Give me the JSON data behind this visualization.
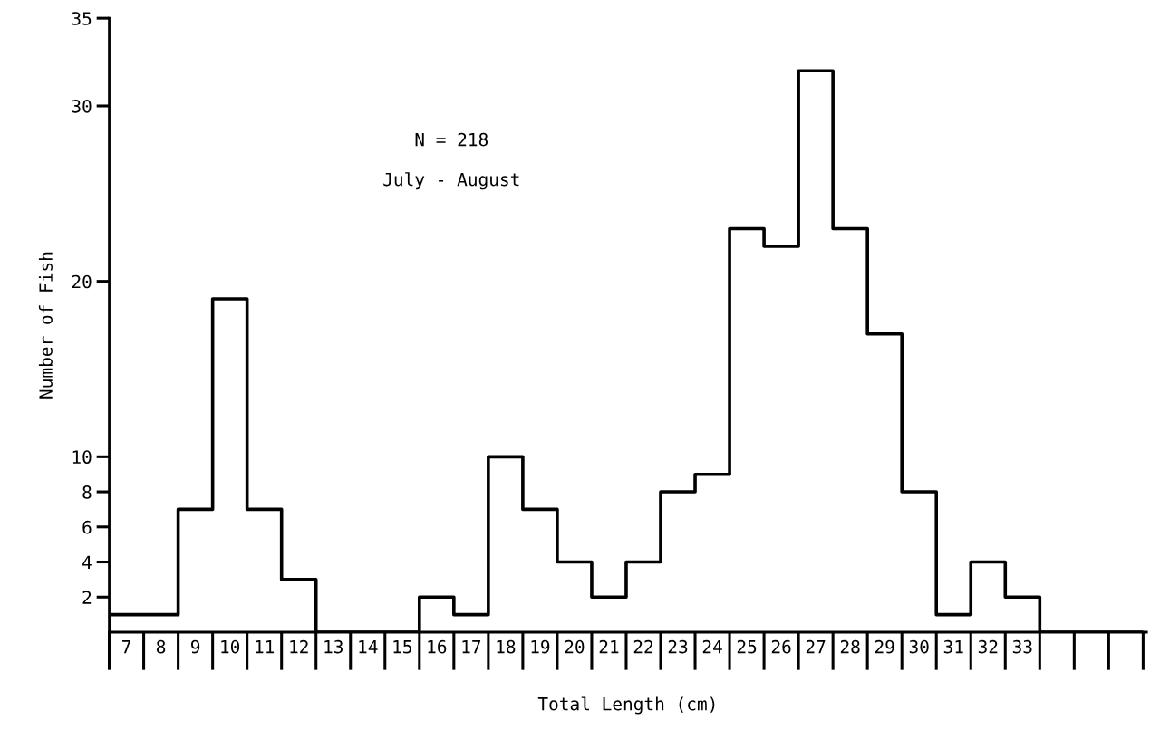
{
  "chart_data": {
    "type": "histogram",
    "xlabel": "Total Length (cm)",
    "ylabel": "Number of Fish",
    "annotations": [
      "N = 218",
      "July - August"
    ],
    "bins": [
      7,
      8,
      9,
      10,
      11,
      12,
      13,
      14,
      15,
      16,
      17,
      18,
      19,
      20,
      21,
      22,
      23,
      24,
      25,
      26,
      27,
      28,
      29,
      30,
      31,
      32,
      33,
      34,
      35,
      36,
      37
    ],
    "values": [
      1,
      1,
      7,
      19,
      7,
      3,
      0,
      0,
      0,
      2,
      1,
      10,
      7,
      4,
      2,
      4,
      8,
      9,
      23,
      22,
      32,
      23,
      17,
      8,
      1,
      4,
      2,
      0,
      0,
      0
    ],
    "color": "#000000",
    "xlim": [
      7,
      37.1
    ],
    "xticks": [
      {
        "value": 7.5,
        "label": "7"
      },
      {
        "value": 8.5,
        "label": "8"
      },
      {
        "value": 9.5,
        "label": "9"
      },
      {
        "value": 10.5,
        "label": "10"
      },
      {
        "value": 11.5,
        "label": "11"
      },
      {
        "value": 12.5,
        "label": "12"
      },
      {
        "value": 13.5,
        "label": "13"
      },
      {
        "value": 14.5,
        "label": "14"
      },
      {
        "value": 15.5,
        "label": "15"
      },
      {
        "value": 16.5,
        "label": "16"
      },
      {
        "value": 17.5,
        "label": "17"
      },
      {
        "value": 18.5,
        "label": "18"
      },
      {
        "value": 19.5,
        "label": "19"
      },
      {
        "value": 20.5,
        "label": "20"
      },
      {
        "value": 21.5,
        "label": "21"
      },
      {
        "value": 22.5,
        "label": "22"
      },
      {
        "value": 23.5,
        "label": "23"
      },
      {
        "value": 24.5,
        "label": "24"
      },
      {
        "value": 25.5,
        "label": "25"
      },
      {
        "value": 26.5,
        "label": "26"
      },
      {
        "value": 27.5,
        "label": "27"
      },
      {
        "value": 28.5,
        "label": "28"
      },
      {
        "value": 29.5,
        "label": "29"
      },
      {
        "value": 30.5,
        "label": "30"
      },
      {
        "value": 31.5,
        "label": "31"
      },
      {
        "value": 32.5,
        "label": "32"
      },
      {
        "value": 33.5,
        "label": "33"
      }
    ],
    "ylim": [
      0,
      35
    ],
    "yticks": [
      2,
      4,
      6,
      8,
      10,
      20,
      30,
      35
    ],
    "grid": false
  }
}
